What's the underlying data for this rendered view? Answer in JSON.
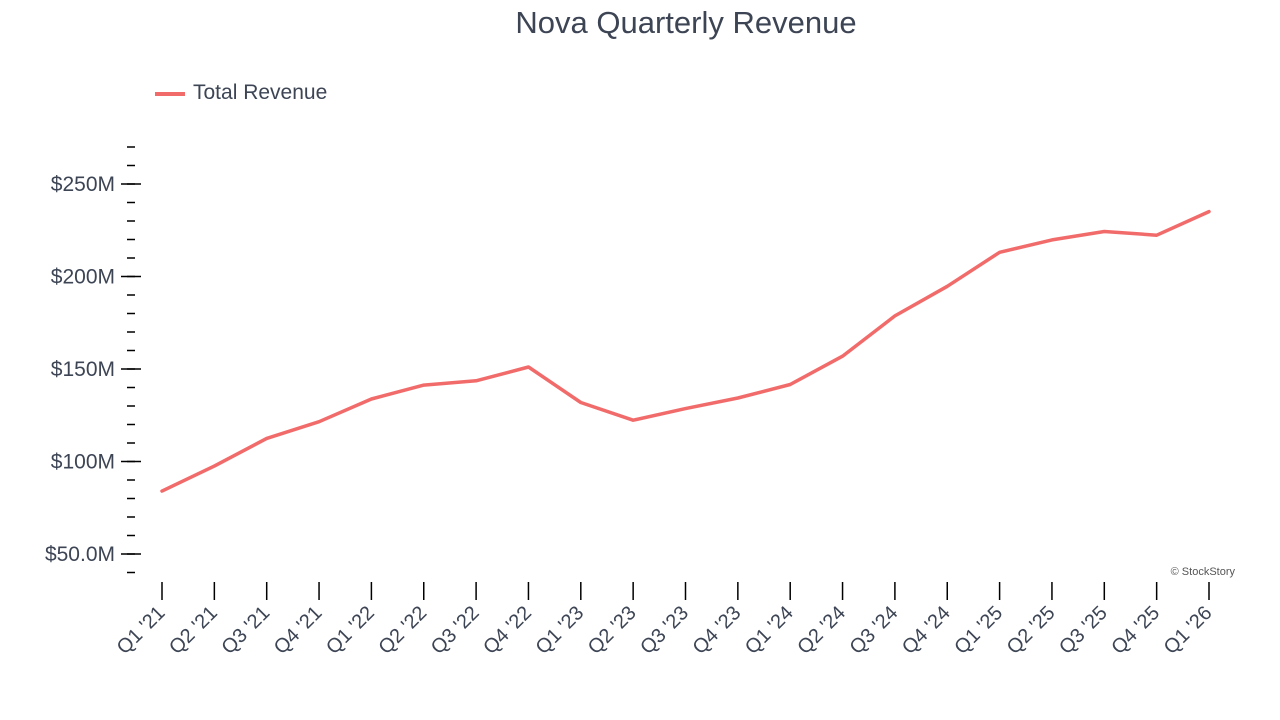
{
  "chart_data": {
    "type": "line",
    "title": "Nova Quarterly Revenue",
    "xlabel": "",
    "ylabel": "",
    "categories": [
      "Q1 '21",
      "Q2 '21",
      "Q3 '21",
      "Q4 '21",
      "Q1 '22",
      "Q2 '22",
      "Q3 '22",
      "Q4 '22",
      "Q1 '23",
      "Q2 '23",
      "Q3 '23",
      "Q4 '23",
      "Q1 '24",
      "Q2 '24",
      "Q3 '24",
      "Q4 '24",
      "Q1 '25",
      "Q2 '25",
      "Q3 '25",
      "Q4 '25",
      "Q1 '26"
    ],
    "series": [
      {
        "name": "Total Revenue",
        "color": "#f26b6b",
        "values": [
          84.0,
          97.5,
          112.5,
          121.5,
          133.8,
          141.3,
          143.6,
          151.1,
          131.9,
          122.3,
          128.6,
          134.3,
          141.6,
          156.9,
          178.7,
          194.7,
          213.1,
          219.8,
          224.3,
          222.3,
          235.1
        ]
      }
    ],
    "ylim": [
      35,
      280
    ],
    "ytick_labels": [
      {
        "value": 50,
        "label": "$50.0M"
      },
      {
        "value": 100,
        "label": "$100M"
      },
      {
        "value": 150,
        "label": "$150M"
      },
      {
        "value": 200,
        "label": "$200M"
      },
      {
        "value": 250,
        "label": "$250M"
      }
    ],
    "minor_tick_step": 10,
    "grid": false,
    "legend_position": "top-left",
    "watermark": "© StockStory",
    "colors": {
      "text": "#3d4555",
      "axis": "#000000"
    }
  }
}
